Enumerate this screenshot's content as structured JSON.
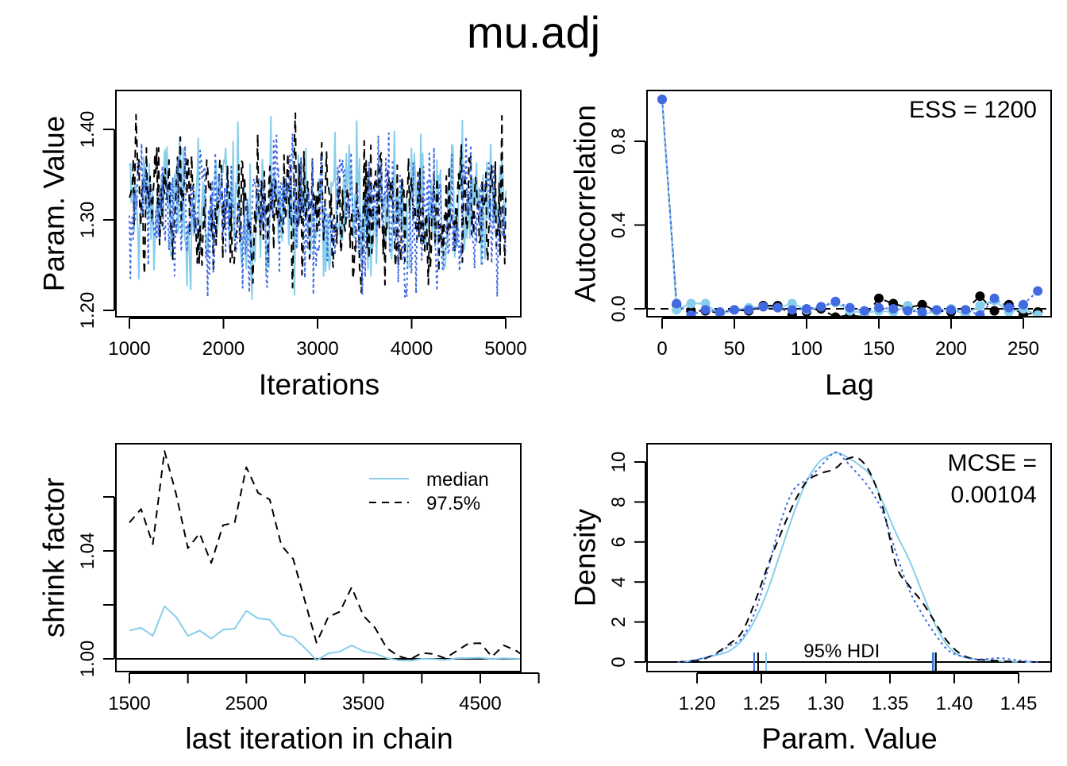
{
  "title": "mu.adj",
  "colors": {
    "chain1": "#87CEEB",
    "chain2": "#000000",
    "chain3": "#4169E1",
    "axis": "#000000"
  },
  "chart_data": [
    {
      "id": "trace",
      "type": "line",
      "title": "",
      "xlabel": "Iterations",
      "ylabel": "Param. Value",
      "xlim": [
        1000,
        5000
      ],
      "ylim": [
        1.19,
        1.445
      ],
      "xticks": [
        1000,
        2000,
        3000,
        4000,
        5000
      ],
      "xtick_labels": [
        "1000",
        "2000",
        "3000",
        "4000",
        "5000"
      ],
      "yticks": [
        1.2,
        1.3,
        1.4
      ],
      "ytick_labels": [
        "1.20",
        "1.30",
        "1.40"
      ],
      "series_summary": [
        {
          "name": "chain 1",
          "style": "solid",
          "color": "#87CEEB",
          "approx_mean": 1.312,
          "approx_sd": 0.038,
          "min": 1.201,
          "max": 1.414
        },
        {
          "name": "chain 2",
          "style": "dashed",
          "color": "#000000",
          "approx_mean": 1.312,
          "approx_sd": 0.038,
          "min": 1.216,
          "max": 1.418
        },
        {
          "name": "chain 3",
          "style": "dotted",
          "color": "#4169E1",
          "approx_mean": 1.312,
          "approx_sd": 0.038,
          "min": 1.215,
          "max": 1.435
        }
      ]
    },
    {
      "id": "acf",
      "type": "line",
      "xlabel": "Lag",
      "ylabel": "Autocorrelation",
      "xlim": [
        0,
        260
      ],
      "ylim": [
        -0.02,
        1.0
      ],
      "xticks": [
        0,
        50,
        100,
        150,
        200,
        250
      ],
      "xtick_labels": [
        "0",
        "50",
        "100",
        "150",
        "200",
        "250"
      ],
      "yticks": [
        0.0,
        0.4,
        0.8
      ],
      "ytick_labels": [
        "0.0",
        "0.4",
        "0.8"
      ],
      "annotation": "ESS = 1200",
      "x": [
        0,
        10,
        20,
        30,
        40,
        50,
        60,
        70,
        80,
        90,
        100,
        110,
        120,
        130,
        140,
        150,
        160,
        170,
        180,
        190,
        200,
        210,
        220,
        230,
        240,
        250,
        260
      ],
      "series": [
        {
          "name": "chain 1",
          "style": "solid",
          "color": "#87CEEB",
          "values": [
            1.0,
            -0.005,
            0.025,
            0.025,
            -0.03,
            -0.005,
            0.005,
            0.01,
            0.005,
            0.025,
            -0.005,
            0.01,
            0.03,
            -0.01,
            -0.02,
            -0.01,
            -0.015,
            0.015,
            -0.03,
            -0.01,
            0.0,
            -0.03,
            0.015,
            0.04,
            -0.015,
            0.0,
            -0.03
          ]
        },
        {
          "name": "chain 2",
          "style": "dashed",
          "color": "#000000",
          "values": [
            1.0,
            0.02,
            -0.01,
            -0.01,
            -0.02,
            -0.005,
            -0.01,
            0.015,
            0.015,
            -0.03,
            -0.015,
            0.0,
            -0.04,
            -0.03,
            -0.04,
            0.05,
            0.025,
            0.005,
            0.02,
            -0.01,
            -0.015,
            -0.005,
            0.06,
            -0.01,
            0.02,
            -0.03,
            -0.015
          ]
        },
        {
          "name": "chain 3",
          "style": "dotted",
          "color": "#4169E1",
          "values": [
            1.0,
            0.025,
            -0.03,
            -0.005,
            -0.015,
            -0.005,
            -0.005,
            0.01,
            0.005,
            -0.005,
            0.0,
            0.01,
            0.035,
            0.005,
            -0.01,
            0.005,
            0.0,
            -0.01,
            -0.015,
            -0.005,
            -0.005,
            -0.005,
            -0.03,
            0.05,
            0.005,
            0.02,
            0.085
          ]
        }
      ],
      "reference_line": 0.0
    },
    {
      "id": "shrink",
      "type": "line",
      "xlabel": "last iteration in chain",
      "ylabel": "shrink factor",
      "xlim": [
        1500,
        5000
      ],
      "ylim": [
        0.9955,
        1.0775
      ],
      "xticks": [
        1500,
        2000,
        2500,
        3000,
        3500,
        4000,
        4500,
        5000
      ],
      "xtick_labels": [
        "1500",
        "",
        "2500",
        "",
        "3500",
        "",
        "4500",
        ""
      ],
      "yticks": [
        1.0,
        1.02,
        1.04,
        1.06
      ],
      "ytick_labels": [
        "1.00",
        "",
        "1.04",
        ""
      ],
      "reference_line": 1.0,
      "legend": {
        "position": "top-right",
        "entries": [
          {
            "label": "median",
            "style": "solid",
            "color": "#87CEEB"
          },
          {
            "label": "97.5%",
            "style": "dashed",
            "color": "#000000"
          }
        ]
      },
      "x": [
        1500,
        1600,
        1700,
        1800,
        1900,
        2000,
        2100,
        2200,
        2300,
        2400,
        2500,
        2600,
        2700,
        2800,
        2900,
        3000,
        3100,
        3200,
        3300,
        3400,
        3500,
        3600,
        3700,
        3800,
        3900,
        4000,
        4100,
        4200,
        4300,
        4400,
        4500,
        4600,
        4700,
        4800,
        4900,
        5000
      ],
      "series": [
        {
          "name": "median",
          "style": "solid",
          "color": "#87CEEB",
          "values": [
            1.0105,
            1.0115,
            1.0085,
            1.0195,
            1.0155,
            1.0085,
            1.0105,
            1.0075,
            1.0108,
            1.0112,
            1.0178,
            1.015,
            1.0145,
            1.009,
            1.008,
            1.004,
            0.9995,
            1.002,
            1.0027,
            1.005,
            1.0028,
            1.002,
            1.0003,
            0.9995,
            0.9993,
            1.0,
            0.9999,
            0.9996,
            1.0002,
            1.0003,
            1.0004,
            0.9999,
            1.0002,
            1.0001,
            0.9997,
            1.0
          ]
        },
        {
          "name": "97.5%",
          "style": "dashed",
          "color": "#000000",
          "values": [
            1.0505,
            1.0555,
            1.0425,
            1.077,
            1.061,
            1.041,
            1.0465,
            1.0355,
            1.0495,
            1.0505,
            1.071,
            1.0615,
            1.059,
            1.042,
            1.037,
            1.0215,
            1.006,
            1.0155,
            1.0175,
            1.0265,
            1.016,
            1.0115,
            1.004,
            1.001,
            0.9998,
            1.0022,
            1.0018,
            1.0002,
            1.003,
            1.0057,
            1.0058,
            1.0008,
            1.005,
            1.0032,
            1.0002,
            1.0025
          ]
        }
      ]
    },
    {
      "id": "density",
      "type": "line",
      "xlabel": "Param. Value",
      "ylabel": "Density",
      "xlim": [
        1.165,
        1.475
      ],
      "ylim": [
        -1.2,
        11.0
      ],
      "xticks": [
        1.2,
        1.25,
        1.3,
        1.35,
        1.4,
        1.45
      ],
      "xtick_labels": [
        "1.20",
        "1.25",
        "1.30",
        "1.35",
        "1.40",
        "1.45"
      ],
      "yticks": [
        0,
        2,
        4,
        6,
        8,
        10
      ],
      "ytick_labels": [
        "0",
        "2",
        "4",
        "6",
        "8",
        "10"
      ],
      "annotation_lines": [
        "MCSE =",
        "0.00104"
      ],
      "hdi_label": "95% HDI",
      "hdi": [
        {
          "name": "chain 1",
          "color": "#87CEEB",
          "low": 1.2537,
          "high": 1.3845
        },
        {
          "name": "chain 2",
          "color": "#000000",
          "low": 1.2475,
          "high": 1.3857
        },
        {
          "name": "chain 3",
          "color": "#4169E1",
          "low": 1.2444,
          "high": 1.3833
        }
      ],
      "x": [
        1.185,
        1.195,
        1.205,
        1.215,
        1.225,
        1.235,
        1.245,
        1.255,
        1.265,
        1.275,
        1.285,
        1.295,
        1.305,
        1.31,
        1.315,
        1.325,
        1.335,
        1.345,
        1.355,
        1.365,
        1.375,
        1.385,
        1.395,
        1.405,
        1.415,
        1.425,
        1.435,
        1.445,
        1.455,
        1.465
      ],
      "series": [
        {
          "name": "chain 1",
          "style": "solid",
          "color": "#87CEEB",
          "values": [
            0.0,
            0.05,
            0.2,
            0.35,
            0.55,
            1.1,
            2.1,
            3.6,
            5.5,
            7.4,
            9.0,
            10.0,
            10.4,
            10.45,
            10.3,
            9.9,
            9.3,
            7.9,
            6.4,
            5.1,
            3.5,
            1.9,
            0.8,
            0.3,
            0.15,
            0.1,
            0.05,
            0.02,
            0.0,
            0.0
          ]
        },
        {
          "name": "chain 2",
          "style": "dashed",
          "color": "#000000",
          "values": [
            0.0,
            0.05,
            0.15,
            0.45,
            0.9,
            1.5,
            3.0,
            4.8,
            6.4,
            7.9,
            9.0,
            9.4,
            9.6,
            9.8,
            10.1,
            10.2,
            9.4,
            7.6,
            4.8,
            3.8,
            3.0,
            2.0,
            1.0,
            0.4,
            0.15,
            0.1,
            0.05,
            0.02,
            0.0,
            0.0
          ]
        },
        {
          "name": "chain 3",
          "style": "dotted",
          "color": "#4169E1",
          "values": [
            0.0,
            0.05,
            0.2,
            0.4,
            0.8,
            1.2,
            2.5,
            4.6,
            7.0,
            8.6,
            9.1,
            9.7,
            10.4,
            10.45,
            10.1,
            9.4,
            8.6,
            7.4,
            5.4,
            3.6,
            2.4,
            1.4,
            0.6,
            0.3,
            0.15,
            0.15,
            0.2,
            0.12,
            0.05,
            0.0
          ]
        }
      ]
    }
  ]
}
